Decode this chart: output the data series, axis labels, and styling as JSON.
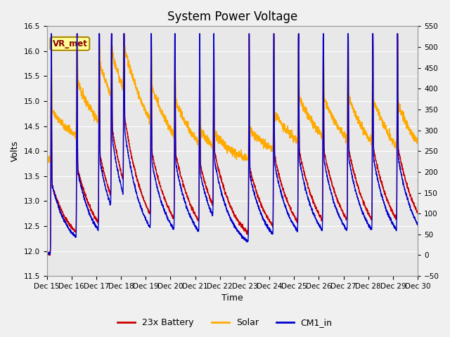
{
  "title": "System Power Voltage",
  "xlabel": "Time",
  "ylabel_left": "Volts",
  "ylim_left": [
    11.5,
    16.5
  ],
  "ylim_right": [
    -50,
    550
  ],
  "fig_facecolor": "#f0f0f0",
  "plot_facecolor": "#e8e8e8",
  "legend_entries": [
    "23x Battery",
    "Solar",
    "CM1_in"
  ],
  "legend_colors": [
    "#cc0000",
    "#ffaa00",
    "#0000cc"
  ],
  "annotation_text": "VR_met",
  "annotation_fgcolor": "#880000",
  "annotation_bgcolor": "#ffff99",
  "annotation_edgecolor": "#aa8800",
  "x_tick_labels": [
    "Dec 15",
    "Dec 16",
    "Dec 17",
    "Dec 18",
    "Dec 19",
    "Dec 20",
    "Dec 21",
    "Dec 22",
    "Dec 23",
    "Dec 24",
    "Dec 25",
    "Dec 26",
    "Dec 27",
    "Dec 28",
    "Dec 29",
    "Dec 30"
  ],
  "left_yticks": [
    11.5,
    12.0,
    12.5,
    13.0,
    13.5,
    14.0,
    14.5,
    15.0,
    15.5,
    16.0,
    16.5
  ],
  "right_yticks": [
    -50,
    0,
    50,
    100,
    150,
    200,
    250,
    300,
    350,
    400,
    450,
    500,
    550
  ],
  "title_fontsize": 12,
  "axis_fontsize": 9,
  "tick_fontsize": 7.5,
  "spike_times": [
    0.18,
    1.22,
    2.12,
    2.62,
    3.12,
    4.22,
    5.18,
    6.18,
    6.75,
    8.18,
    9.18,
    10.18,
    11.18,
    12.18,
    13.18,
    14.18
  ],
  "spike_heights_batt": [
    4.05,
    3.85,
    4.15,
    4.15,
    4.05,
    3.85,
    4.05,
    3.45,
    3.45,
    3.95,
    4.25,
    4.35,
    4.25,
    4.35,
    4.35,
    4.35
  ],
  "spike_heights_cm1": [
    4.15,
    4.05,
    4.25,
    4.25,
    4.15,
    4.05,
    4.15,
    3.55,
    3.55,
    4.05,
    4.35,
    4.45,
    4.35,
    4.45,
    4.45,
    4.45
  ]
}
